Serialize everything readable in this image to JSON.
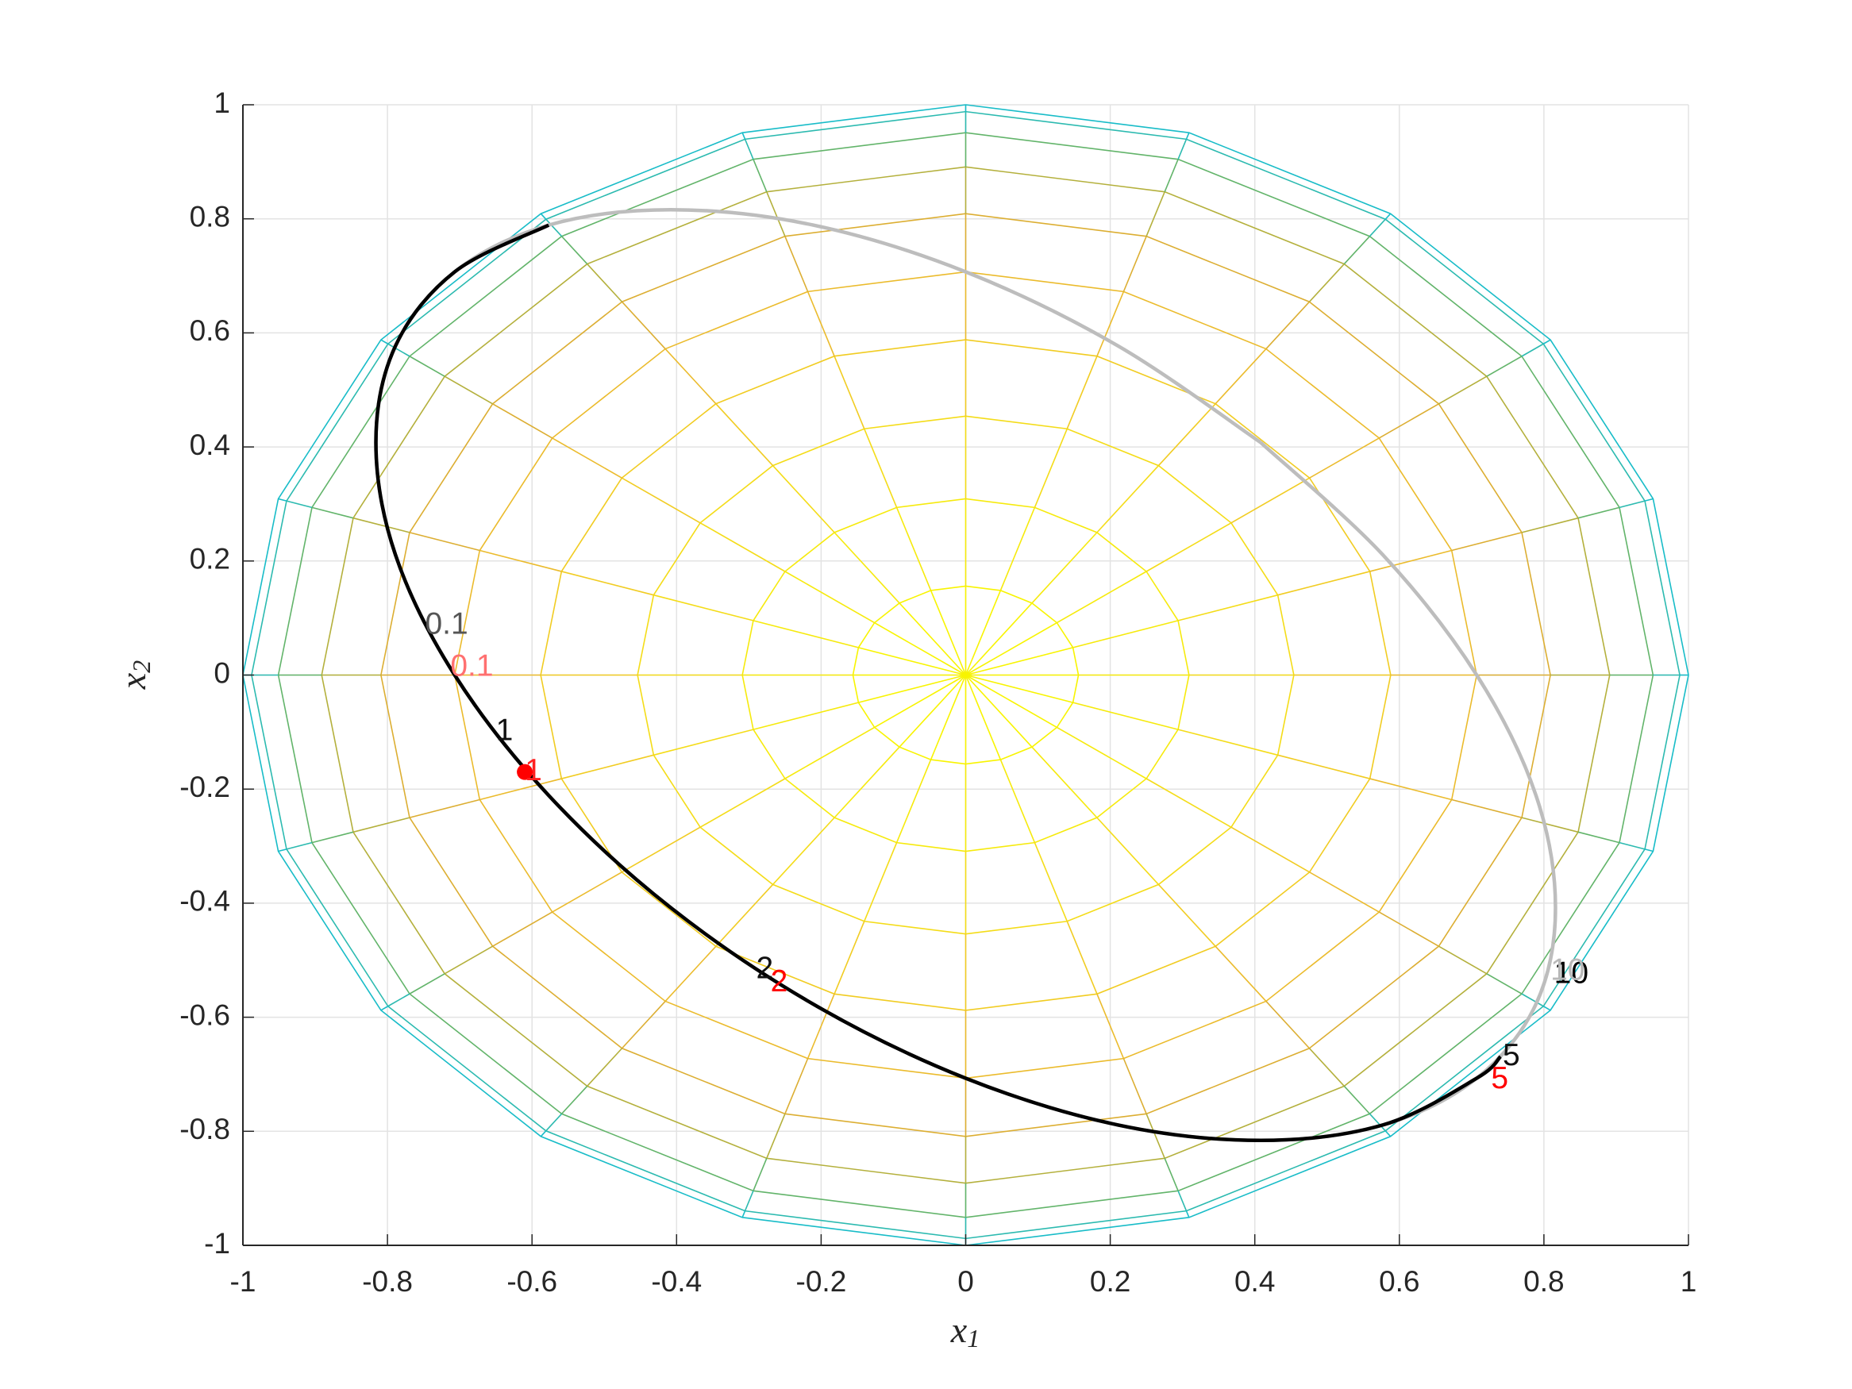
{
  "chart_data": {
    "type": "line",
    "xlabel": {
      "base": "x",
      "subscript": "1"
    },
    "ylabel": {
      "base": "x",
      "subscript": "2"
    },
    "xlim": [
      -1,
      1
    ],
    "ylim": [
      -1,
      1
    ],
    "xticks": [
      -1,
      -0.8,
      -0.6,
      -0.4,
      -0.2,
      0,
      0.2,
      0.4,
      0.6,
      0.8,
      1
    ],
    "yticks": [
      -1,
      -0.8,
      -0.6,
      -0.4,
      -0.2,
      0,
      0.2,
      0.4,
      0.6,
      0.8,
      1
    ],
    "grid": true,
    "mesh": {
      "radii": [
        0.156,
        0.309,
        0.454,
        0.588,
        0.707,
        0.809,
        0.891,
        0.951,
        0.988,
        1
      ],
      "colors": [
        "#f8f400",
        "#f6ea0c",
        "#f4dc18",
        "#f1cc22",
        "#ebbb2c",
        "#dcae32",
        "#b4b03c",
        "#62b46a",
        "#2cbab0",
        "#18bcc8"
      ],
      "spokes": 20
    },
    "series": [
      {
        "color": "#bdbdbd",
        "x": [
          0.408,
          0.577,
          0.707,
          0.789,
          0.816,
          0.789,
          0.707,
          0.577,
          0.408,
          0.211,
          0,
          -0.211,
          -0.408,
          -0.577,
          -0.707,
          -0.789,
          -0.816,
          -0.789,
          -0.707,
          -0.577,
          -0.408,
          -0.211,
          0,
          0.211,
          0.408
        ],
        "values": [
          0.408,
          0.211,
          0,
          -0.211,
          -0.408,
          -0.577,
          -0.707,
          -0.789,
          -0.816,
          -0.789,
          -0.707,
          -0.577,
          -0.408,
          -0.211,
          0,
          0.211,
          0.408,
          0.577,
          0.707,
          0.789,
          0.816,
          0.789,
          0.707,
          0.577,
          0.408
        ]
      },
      {
        "color": "#000000",
        "x": [
          -0.577,
          -0.707,
          -0.789,
          -0.816,
          -0.789,
          -0.707,
          -0.577,
          -0.408,
          -0.211,
          0,
          0.211,
          0.408,
          0.577,
          0.707,
          0.74
        ],
        "values": [
          0.789,
          0.707,
          0.577,
          0.408,
          0.211,
          0,
          -0.211,
          -0.408,
          -0.577,
          -0.707,
          -0.789,
          -0.816,
          -0.789,
          -0.707,
          -0.669
        ]
      }
    ],
    "points": [
      {
        "x": -0.61,
        "y": -0.17,
        "color": "#ff0000"
      }
    ],
    "annotations": [
      {
        "text": "0.1",
        "x": -0.748,
        "y": 0.087,
        "color": "#555555"
      },
      {
        "text": "0.1",
        "x": -0.713,
        "y": 0.013,
        "color": "#ff7070"
      },
      {
        "text": "1",
        "x": -0.65,
        "y": -0.1,
        "color": "#111111"
      },
      {
        "text": "1",
        "x": -0.61,
        "y": -0.17,
        "color": "#ff2020"
      },
      {
        "text": "2",
        "x": -0.29,
        "y": -0.517,
        "color": "#111111"
      },
      {
        "text": "2",
        "x": -0.27,
        "y": -0.54,
        "color": "#ff0000"
      },
      {
        "text": "10",
        "x": 0.814,
        "y": -0.526,
        "color": "#000000"
      },
      {
        "text": "10",
        "x": 0.809,
        "y": -0.52,
        "color": "#b8b8b8"
      },
      {
        "text": "5",
        "x": 0.743,
        "y": -0.67,
        "color": "#111111"
      },
      {
        "text": "5",
        "x": 0.727,
        "y": -0.71,
        "color": "#ff0000"
      }
    ]
  }
}
